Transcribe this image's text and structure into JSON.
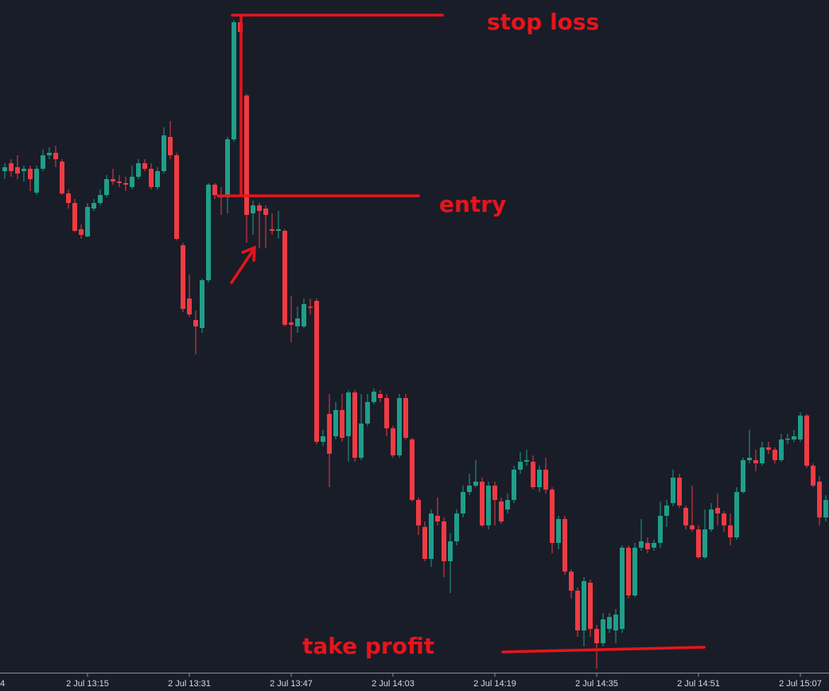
{
  "chart_data": {
    "type": "candlestick",
    "up_color": "#1f9e89",
    "down_color": "#ef3b45",
    "xlim": [
      -0.75,
      129.5
    ],
    "ylim": [
      155,
      1000
    ],
    "xticks": [
      {
        "value": -2,
        "label": "4"
      },
      {
        "value": 13,
        "label": "2 Jul 13:15"
      },
      {
        "value": 29,
        "label": "2 Jul 13:31"
      },
      {
        "value": 45,
        "label": "2 Jul 13:47"
      },
      {
        "value": 61,
        "label": "2 Jul 14:03"
      },
      {
        "value": 77,
        "label": "2 Jul 14:19"
      },
      {
        "value": 93,
        "label": "2 Jul 14:35"
      },
      {
        "value": 109,
        "label": "2 Jul 14:51"
      },
      {
        "value": 125,
        "label": "2 Jul 15:07"
      }
    ],
    "annotations": [
      "stop loss",
      "entry",
      "take profit"
    ],
    "open": [
      785,
      795,
      790,
      785,
      788,
      758,
      788,
      805,
      808,
      797,
      757,
      745,
      712,
      703,
      738,
      745,
      755,
      775,
      772,
      770,
      765,
      778,
      795,
      788,
      765,
      785,
      828,
      805,
      692,
      625,
      598,
      588,
      648,
      768,
      755,
      752,
      825,
      972,
      880,
      732,
      742,
      738,
      712,
      710,
      710,
      595,
      590,
      590,
      615,
      622,
      445,
      480,
      452,
      485,
      452,
      507,
      425,
      468,
      495,
      505,
      500,
      462,
      428,
      500,
      448,
      372,
      338,
      298,
      352,
      345,
      295,
      320,
      355,
      382,
      390,
      395,
      340,
      390,
      370,
      360,
      372,
      410,
      420,
      420,
      388,
      410,
      385,
      318,
      348,
      282,
      258,
      208,
      268,
      210,
      192,
      210,
      208,
      210,
      312,
      252,
      312,
      318,
      312,
      318,
      352,
      368,
      400,
      362,
      340,
      335,
      300,
      335,
      362,
      355,
      340,
      325,
      382,
      422,
      422,
      418,
      438,
      435,
      422,
      448,
      448,
      448,
      478,
      415,
      395,
      350
    ],
    "high": [
      795,
      800,
      805,
      792,
      792,
      792,
      812,
      815,
      817,
      800,
      762,
      750,
      718,
      745,
      750,
      762,
      780,
      788,
      780,
      778,
      792,
      800,
      800,
      795,
      790,
      840,
      848,
      808,
      695,
      655,
      610,
      650,
      770,
      770,
      765,
      828,
      975,
      982,
      882,
      748,
      745,
      742,
      732,
      735,
      712,
      628,
      615,
      625,
      625,
      625,
      460,
      505,
      495,
      505,
      510,
      510,
      505,
      505,
      512,
      510,
      505,
      465,
      505,
      505,
      450,
      375,
      345,
      360,
      375,
      350,
      330,
      360,
      390,
      405,
      422,
      400,
      395,
      395,
      375,
      380,
      415,
      432,
      435,
      428,
      415,
      425,
      388,
      352,
      352,
      285,
      262,
      275,
      272,
      215,
      230,
      230,
      235,
      315,
      315,
      318,
      348,
      325,
      322,
      370,
      372,
      410,
      405,
      365,
      390,
      340,
      360,
      368,
      380,
      358,
      355,
      388,
      425,
      460,
      435,
      445,
      445,
      438,
      455,
      455,
      460,
      482,
      480,
      418,
      402,
      378
    ],
    "low": [
      775,
      778,
      775,
      772,
      760,
      755,
      785,
      800,
      790,
      755,
      738,
      708,
      700,
      702,
      735,
      742,
      752,
      768,
      765,
      760,
      762,
      775,
      785,
      762,
      762,
      782,
      800,
      698,
      608,
      602,
      555,
      582,
      645,
      750,
      730,
      732,
      822,
      955,
      695,
      705,
      688,
      688,
      705,
      700,
      590,
      570,
      582,
      588,
      605,
      442,
      440,
      388,
      448,
      445,
      420,
      420,
      422,
      465,
      492,
      495,
      452,
      425,
      425,
      448,
      370,
      328,
      295,
      288,
      340,
      275,
      255,
      315,
      350,
      378,
      388,
      338,
      335,
      340,
      342,
      355,
      368,
      405,
      415,
      385,
      382,
      380,
      305,
      310,
      278,
      248,
      200,
      188,
      200,
      160,
      188,
      205,
      192,
      205,
      248,
      250,
      308,
      305,
      308,
      312,
      338,
      364,
      362,
      335,
      332,
      298,
      298,
      332,
      340,
      332,
      315,
      322,
      380,
      418,
      408,
      415,
      430,
      418,
      420,
      442,
      445,
      445,
      412,
      388,
      340,
      345
    ],
    "close": [
      790,
      785,
      782,
      788,
      775,
      788,
      805,
      808,
      800,
      757,
      745,
      710,
      705,
      740,
      745,
      755,
      775,
      772,
      770,
      768,
      778,
      795,
      788,
      765,
      785,
      830,
      805,
      700,
      612,
      605,
      590,
      648,
      768,
      755,
      752,
      825,
      972,
      960,
      730,
      742,
      735,
      730,
      710,
      712,
      592,
      592,
      600,
      618,
      614,
      445,
      452,
      430,
      485,
      450,
      507,
      425,
      468,
      495,
      508,
      500,
      462,
      428,
      500,
      450,
      372,
      340,
      298,
      355,
      345,
      295,
      320,
      355,
      382,
      390,
      395,
      340,
      390,
      372,
      345,
      372,
      410,
      420,
      422,
      388,
      410,
      385,
      318,
      348,
      282,
      258,
      208,
      270,
      210,
      192,
      222,
      225,
      228,
      312,
      252,
      312,
      320,
      310,
      318,
      352,
      365,
      400,
      365,
      340,
      335,
      300,
      335,
      360,
      355,
      340,
      325,
      382,
      422,
      425,
      418,
      438,
      435,
      422,
      448,
      449,
      452,
      478,
      415,
      390,
      350,
      372
    ]
  }
}
